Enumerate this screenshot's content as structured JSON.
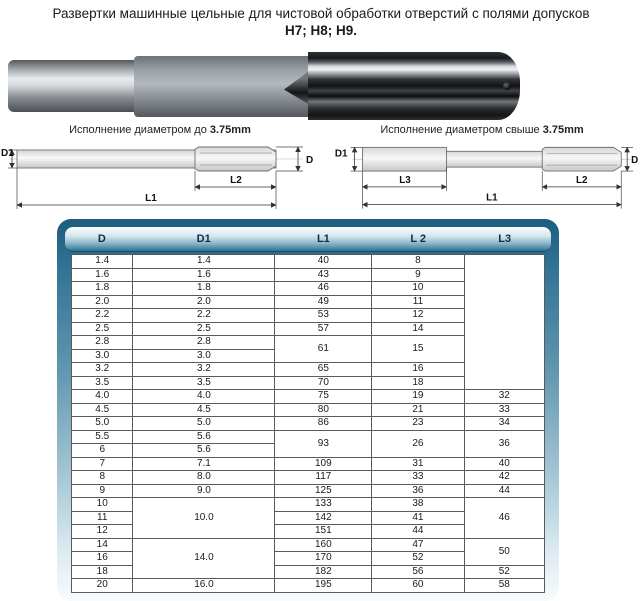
{
  "page": {
    "title_line1": "Развертки машинные цельные для чистовой обработки отверстий с полями допусков",
    "title_line2": "H7; H8; H9."
  },
  "photo": {
    "description": "machine-reamer-photo"
  },
  "diagram_left": {
    "title": "Исполнение диаметром до",
    "title_value": "3.75mm",
    "labels": {
      "d1": "D1",
      "d": "D",
      "l2": "L2",
      "l1": "L1"
    }
  },
  "diagram_right": {
    "title": "Исполнение диаметром свыше",
    "title_value": "3.75mm",
    "labels": {
      "d1": "D1",
      "d": "D",
      "l3": "L3",
      "l2": "L2",
      "l1": "L1"
    }
  },
  "table": {
    "accent_color": "#2d7090",
    "headers": [
      "D",
      "D1",
      "L1",
      "L 2",
      "L3"
    ],
    "rows": [
      [
        "1.4",
        "1.4",
        "40",
        "8",
        {
          "t": "",
          "rs": 10
        }
      ],
      [
        "1.6",
        "1.6",
        "43",
        "9"
      ],
      [
        "1.8",
        "1.8",
        "46",
        "10"
      ],
      [
        "2.0",
        "2.0",
        "49",
        "11"
      ],
      [
        "2.2",
        "2.2",
        "53",
        "12"
      ],
      [
        "2.5",
        "2.5",
        "57",
        "14"
      ],
      [
        "2.8",
        "2.8",
        {
          "t": "61",
          "rs": 2
        },
        {
          "t": "15",
          "rs": 2
        }
      ],
      [
        "3.0",
        "3.0"
      ],
      [
        "3.2",
        "3.2",
        "65",
        "16"
      ],
      [
        "3.5",
        "3.5",
        "70",
        "18"
      ],
      [
        "4.0",
        "4.0",
        "75",
        "19",
        "32"
      ],
      [
        "4.5",
        "4.5",
        "80",
        "21",
        "33"
      ],
      [
        "5.0",
        "5.0",
        "86",
        "23",
        "34"
      ],
      [
        "5.5",
        "5.6",
        {
          "t": "93",
          "rs": 2
        },
        {
          "t": "26",
          "rs": 2
        },
        {
          "t": "36",
          "rs": 2
        }
      ],
      [
        "6",
        "5.6"
      ],
      [
        "7",
        "7.1",
        "109",
        "31",
        "40"
      ],
      [
        "8",
        "8.0",
        "117",
        "33",
        "42"
      ],
      [
        "9",
        "9.0",
        "125",
        "36",
        "44"
      ],
      [
        "10",
        {
          "t": "10.0",
          "rs": 3
        },
        "133",
        "38",
        {
          "t": "46",
          "rs": 3
        }
      ],
      [
        "11",
        "142",
        "41"
      ],
      [
        "12",
        "151",
        "44"
      ],
      [
        "14",
        {
          "t": "14.0",
          "rs": 3
        },
        "160",
        "47",
        {
          "t": "50",
          "rs": 2
        }
      ],
      [
        "16",
        "170",
        "52"
      ],
      [
        "18",
        "182",
        "56",
        "52"
      ],
      [
        "20",
        "16.0",
        "195",
        "60",
        "58"
      ]
    ]
  }
}
